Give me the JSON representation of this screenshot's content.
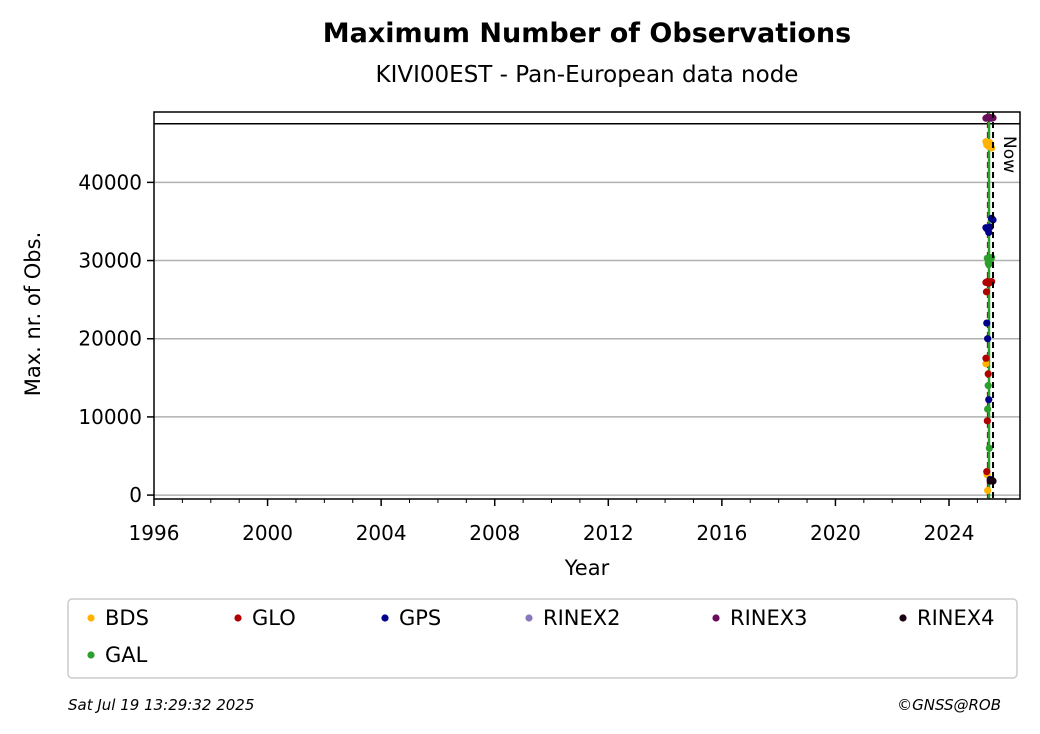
{
  "chart_data": {
    "type": "scatter",
    "title": "Maximum Number of Observations",
    "subtitle": "KIVI00EST - Pan-European data node",
    "xlabel": "Year",
    "ylabel": "Max. nr. of Obs.",
    "xlim": [
      1996,
      2026.5
    ],
    "ylim": [
      -500,
      49000
    ],
    "x_ticks": [
      1996,
      2000,
      2004,
      2008,
      2012,
      2016,
      2020,
      2024
    ],
    "y_ticks": [
      0,
      10000,
      20000,
      30000,
      40000
    ],
    "grid": "horizontal",
    "reference_line_y": 47500,
    "now_marker": {
      "x": 2025.55,
      "label": "Now"
    },
    "legend": {
      "placement": "below",
      "columns": 6
    },
    "series": [
      {
        "name": "BDS",
        "color": "#ffb300",
        "points": [
          [
            2025.3,
            45200
          ],
          [
            2025.33,
            44800
          ],
          [
            2025.36,
            45000
          ],
          [
            2025.4,
            44600
          ],
          [
            2025.43,
            45100
          ],
          [
            2025.47,
            44900
          ],
          [
            2025.5,
            44400
          ],
          [
            2025.34,
            2600
          ],
          [
            2025.3,
            16800
          ],
          [
            2025.36,
            600
          ]
        ]
      },
      {
        "name": "GLO",
        "color": "#b00000",
        "points": [
          [
            2025.3,
            27200
          ],
          [
            2025.35,
            27300
          ],
          [
            2025.4,
            27100
          ],
          [
            2025.45,
            27200
          ],
          [
            2025.5,
            27300
          ],
          [
            2025.32,
            26000
          ],
          [
            2025.3,
            17500
          ],
          [
            2025.38,
            15500
          ],
          [
            2025.35,
            9500
          ],
          [
            2025.33,
            3000
          ]
        ]
      },
      {
        "name": "GPS",
        "color": "#00008b",
        "points": [
          [
            2025.3,
            34200
          ],
          [
            2025.35,
            34000
          ],
          [
            2025.4,
            33600
          ],
          [
            2025.45,
            34300
          ],
          [
            2025.5,
            35400
          ],
          [
            2025.55,
            35200
          ],
          [
            2025.33,
            22000
          ],
          [
            2025.36,
            20000
          ],
          [
            2025.4,
            12200
          ],
          [
            2025.45,
            2000
          ]
        ]
      },
      {
        "name": "RINEX2",
        "color": "#8878bb",
        "points": []
      },
      {
        "name": "RINEX3",
        "color": "#6a0d5c",
        "points": [
          [
            2025.3,
            48200
          ],
          [
            2025.35,
            48300
          ],
          [
            2025.4,
            48200
          ],
          [
            2025.45,
            48300
          ],
          [
            2025.5,
            48200
          ],
          [
            2025.55,
            48250
          ]
        ]
      },
      {
        "name": "RINEX4",
        "color": "#1a0012",
        "points": [
          [
            2025.45,
            1800
          ],
          [
            2025.5,
            1900
          ],
          [
            2025.55,
            1800
          ]
        ]
      },
      {
        "name": "GAL",
        "color": "#2ca02c",
        "points": [
          [
            2025.35,
            30300
          ],
          [
            2025.38,
            29700
          ],
          [
            2025.42,
            30200
          ],
          [
            2025.46,
            29800
          ],
          [
            2025.5,
            30400
          ],
          [
            2025.4,
            29500
          ],
          [
            2025.36,
            11000
          ],
          [
            2025.42,
            6000
          ],
          [
            2025.38,
            14000
          ]
        ]
      }
    ]
  },
  "footer": {
    "timestamp": "Sat Jul 19 13:29:32 2025",
    "copyright": "©GNSS@ROB"
  }
}
